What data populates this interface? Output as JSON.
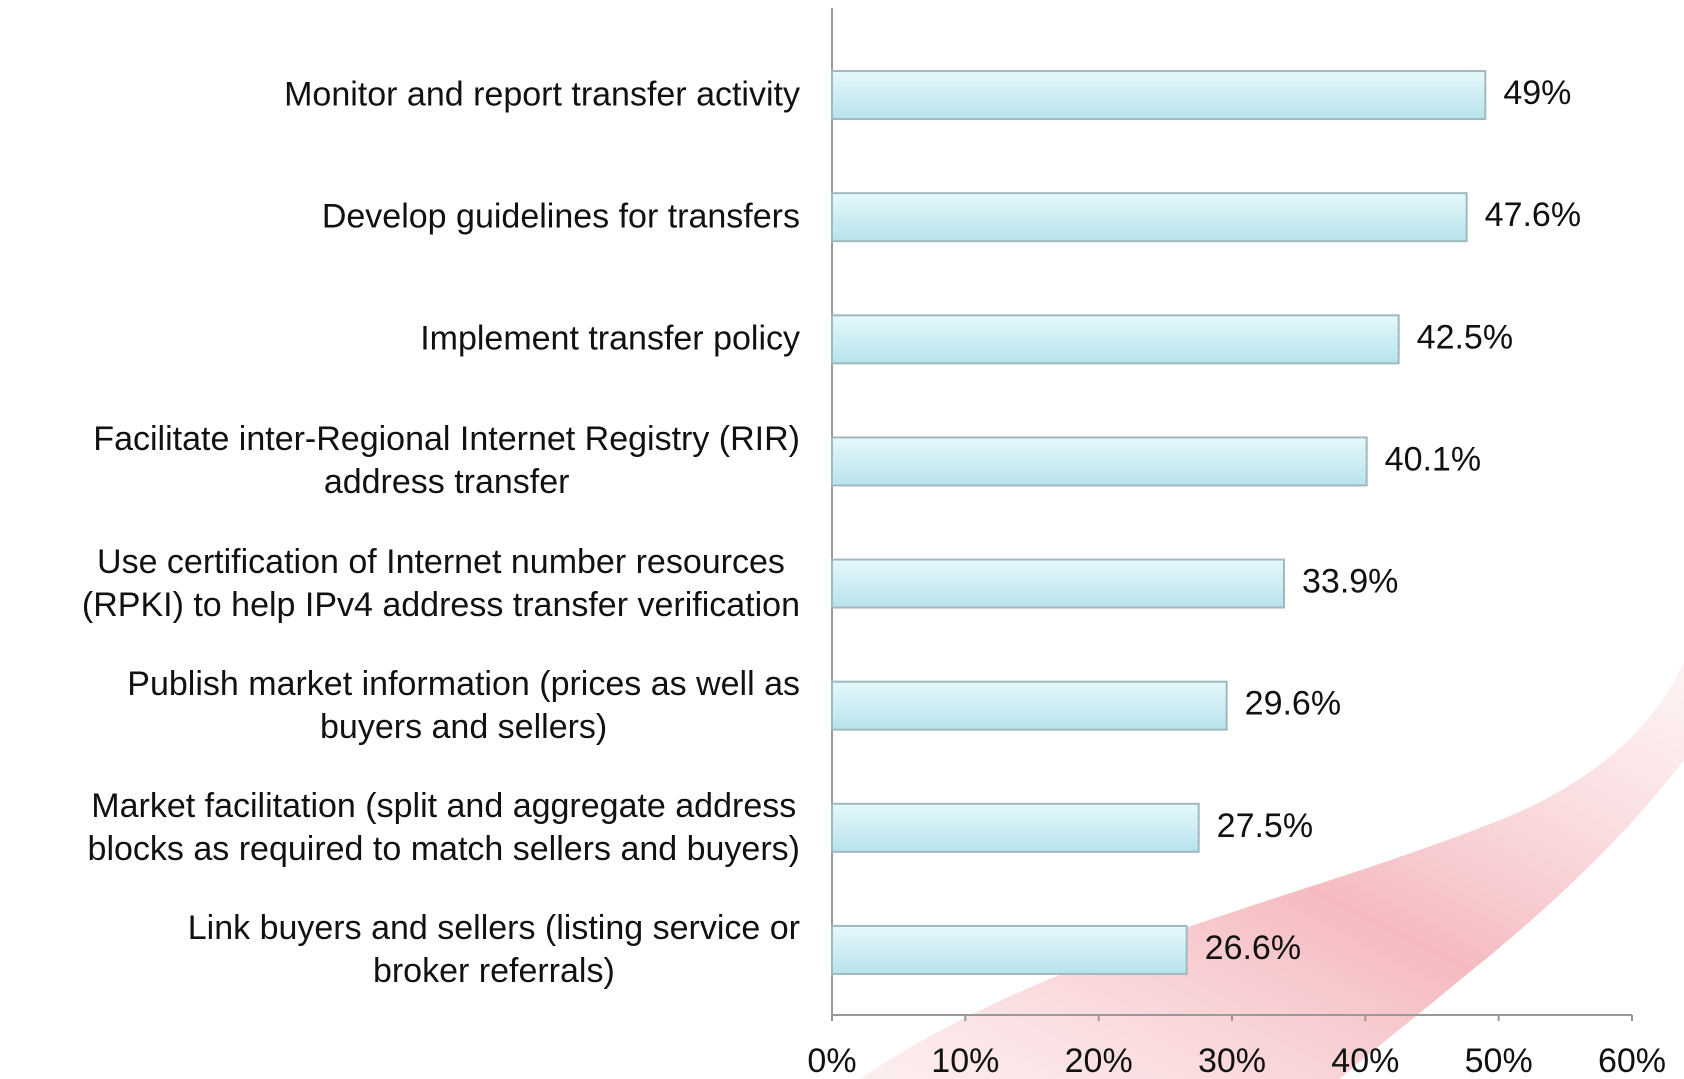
{
  "chart_data": {
    "type": "bar",
    "orientation": "horizontal",
    "categories": [
      "Monitor and report transfer activity",
      "Develop guidelines for transfers",
      "Implement transfer policy",
      "Facilitate inter-Regional Internet Registry (RIR)\naddress transfer",
      "Use certification of Internet number resources\n(RPKI) to help IPv4 address transfer verification",
      "Publish market information (prices as well as\nbuyers and sellers)",
      "Market facilitation (split and aggregate address\nblocks as required to match sellers and buyers)",
      "Link buyers and sellers (listing service or\nbroker referrals)"
    ],
    "values": [
      49,
      47.6,
      42.5,
      40.1,
      33.9,
      29.6,
      27.5,
      26.6
    ],
    "value_labels": [
      "49%",
      "47.6%",
      "42.5%",
      "40.1%",
      "33.9%",
      "29.6%",
      "27.5%",
      "26.6%"
    ],
    "color": "#c8eef5",
    "xlim": [
      0,
      60
    ],
    "xticks": [
      {
        "value": 0,
        "label": "0%"
      },
      {
        "value": 10,
        "label": "10%"
      },
      {
        "value": 20,
        "label": "20%"
      },
      {
        "value": 30,
        "label": "30%"
      },
      {
        "value": 40,
        "label": "40%"
      },
      {
        "value": 50,
        "label": "50%"
      },
      {
        "value": 60,
        "label": "60%"
      }
    ],
    "grid": false
  }
}
